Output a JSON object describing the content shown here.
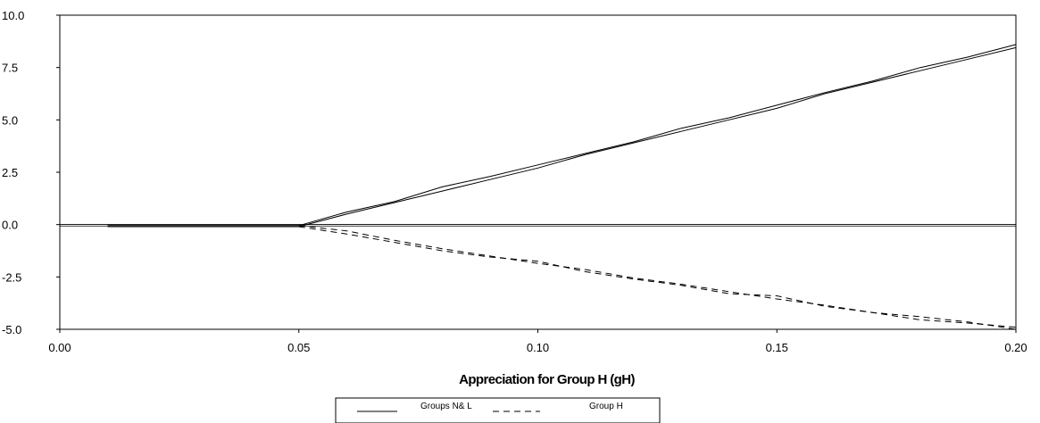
{
  "chart_data": {
    "type": "line",
    "title": "",
    "xlabel": "Appreciation for Group H (gH)",
    "ylabel": "",
    "xlim": [
      0.0,
      0.2
    ],
    "ylim": [
      -5.0,
      10.0
    ],
    "x_ticks": [
      "0.00",
      "0.05",
      "0.10",
      "0.15",
      "0.20"
    ],
    "x_tick_values": [
      0.0,
      0.05,
      0.1,
      0.15,
      0.2
    ],
    "y_ticks": [
      "10.0",
      "7.5",
      "5.0",
      "2.5",
      "0.0",
      "-2.5",
      "-5.0"
    ],
    "y_tick_values": [
      10.0,
      7.5,
      5.0,
      2.5,
      0.0,
      -2.5,
      -5.0
    ],
    "zero_line": true,
    "grid": false,
    "legend_position": "bottom-center",
    "series": [
      {
        "name": "Groups N& L",
        "style": "solid",
        "color": "#000000",
        "x": [
          0.01,
          0.02,
          0.03,
          0.04,
          0.05,
          0.06,
          0.07,
          0.08,
          0.09,
          0.1,
          0.11,
          0.12,
          0.13,
          0.14,
          0.15,
          0.16,
          0.17,
          0.18,
          0.19,
          0.2
        ],
        "y": [
          -0.05,
          -0.05,
          -0.05,
          -0.05,
          -0.05,
          0.6,
          1.1,
          1.8,
          2.3,
          2.85,
          3.4,
          3.95,
          4.6,
          5.1,
          5.7,
          6.3,
          6.85,
          7.5,
          8.0,
          8.6
        ]
      },
      {
        "name": "Groups N& L",
        "style": "solid",
        "color": "#000000",
        "x": [
          0.01,
          0.02,
          0.03,
          0.04,
          0.05,
          0.06,
          0.07,
          0.08,
          0.09,
          0.1,
          0.11,
          0.12,
          0.13,
          0.14,
          0.15,
          0.16,
          0.17,
          0.18,
          0.19,
          0.2
        ],
        "y": [
          -0.1,
          -0.1,
          -0.1,
          -0.1,
          -0.1,
          0.5,
          1.05,
          1.6,
          2.15,
          2.7,
          3.35,
          3.9,
          4.45,
          5.0,
          5.55,
          6.25,
          6.8,
          7.35,
          7.9,
          8.45
        ]
      },
      {
        "name": "Group H",
        "style": "dashed",
        "color": "#000000",
        "x": [
          0.05,
          0.06,
          0.07,
          0.08,
          0.09,
          0.1,
          0.11,
          0.12,
          0.13,
          0.14,
          0.15,
          0.16,
          0.17,
          0.18,
          0.19,
          0.2
        ],
        "y": [
          -0.05,
          -0.3,
          -0.75,
          -1.15,
          -1.5,
          -1.85,
          -2.15,
          -2.55,
          -2.85,
          -3.2,
          -3.55,
          -3.85,
          -4.2,
          -4.55,
          -4.7,
          -4.9
        ]
      },
      {
        "name": "Group H",
        "style": "dashed",
        "color": "#000000",
        "x": [
          0.05,
          0.06,
          0.07,
          0.08,
          0.09,
          0.1,
          0.11,
          0.12,
          0.13,
          0.14,
          0.15,
          0.16,
          0.17,
          0.18,
          0.19,
          0.2
        ],
        "y": [
          -0.1,
          -0.45,
          -0.85,
          -1.25,
          -1.55,
          -1.75,
          -2.25,
          -2.6,
          -2.9,
          -3.3,
          -3.4,
          -3.9,
          -4.2,
          -4.4,
          -4.65,
          -5.0
        ]
      }
    ],
    "legend": [
      {
        "label": "Groups N& L",
        "style": "solid"
      },
      {
        "label": "Group H",
        "style": "dashed"
      }
    ]
  }
}
